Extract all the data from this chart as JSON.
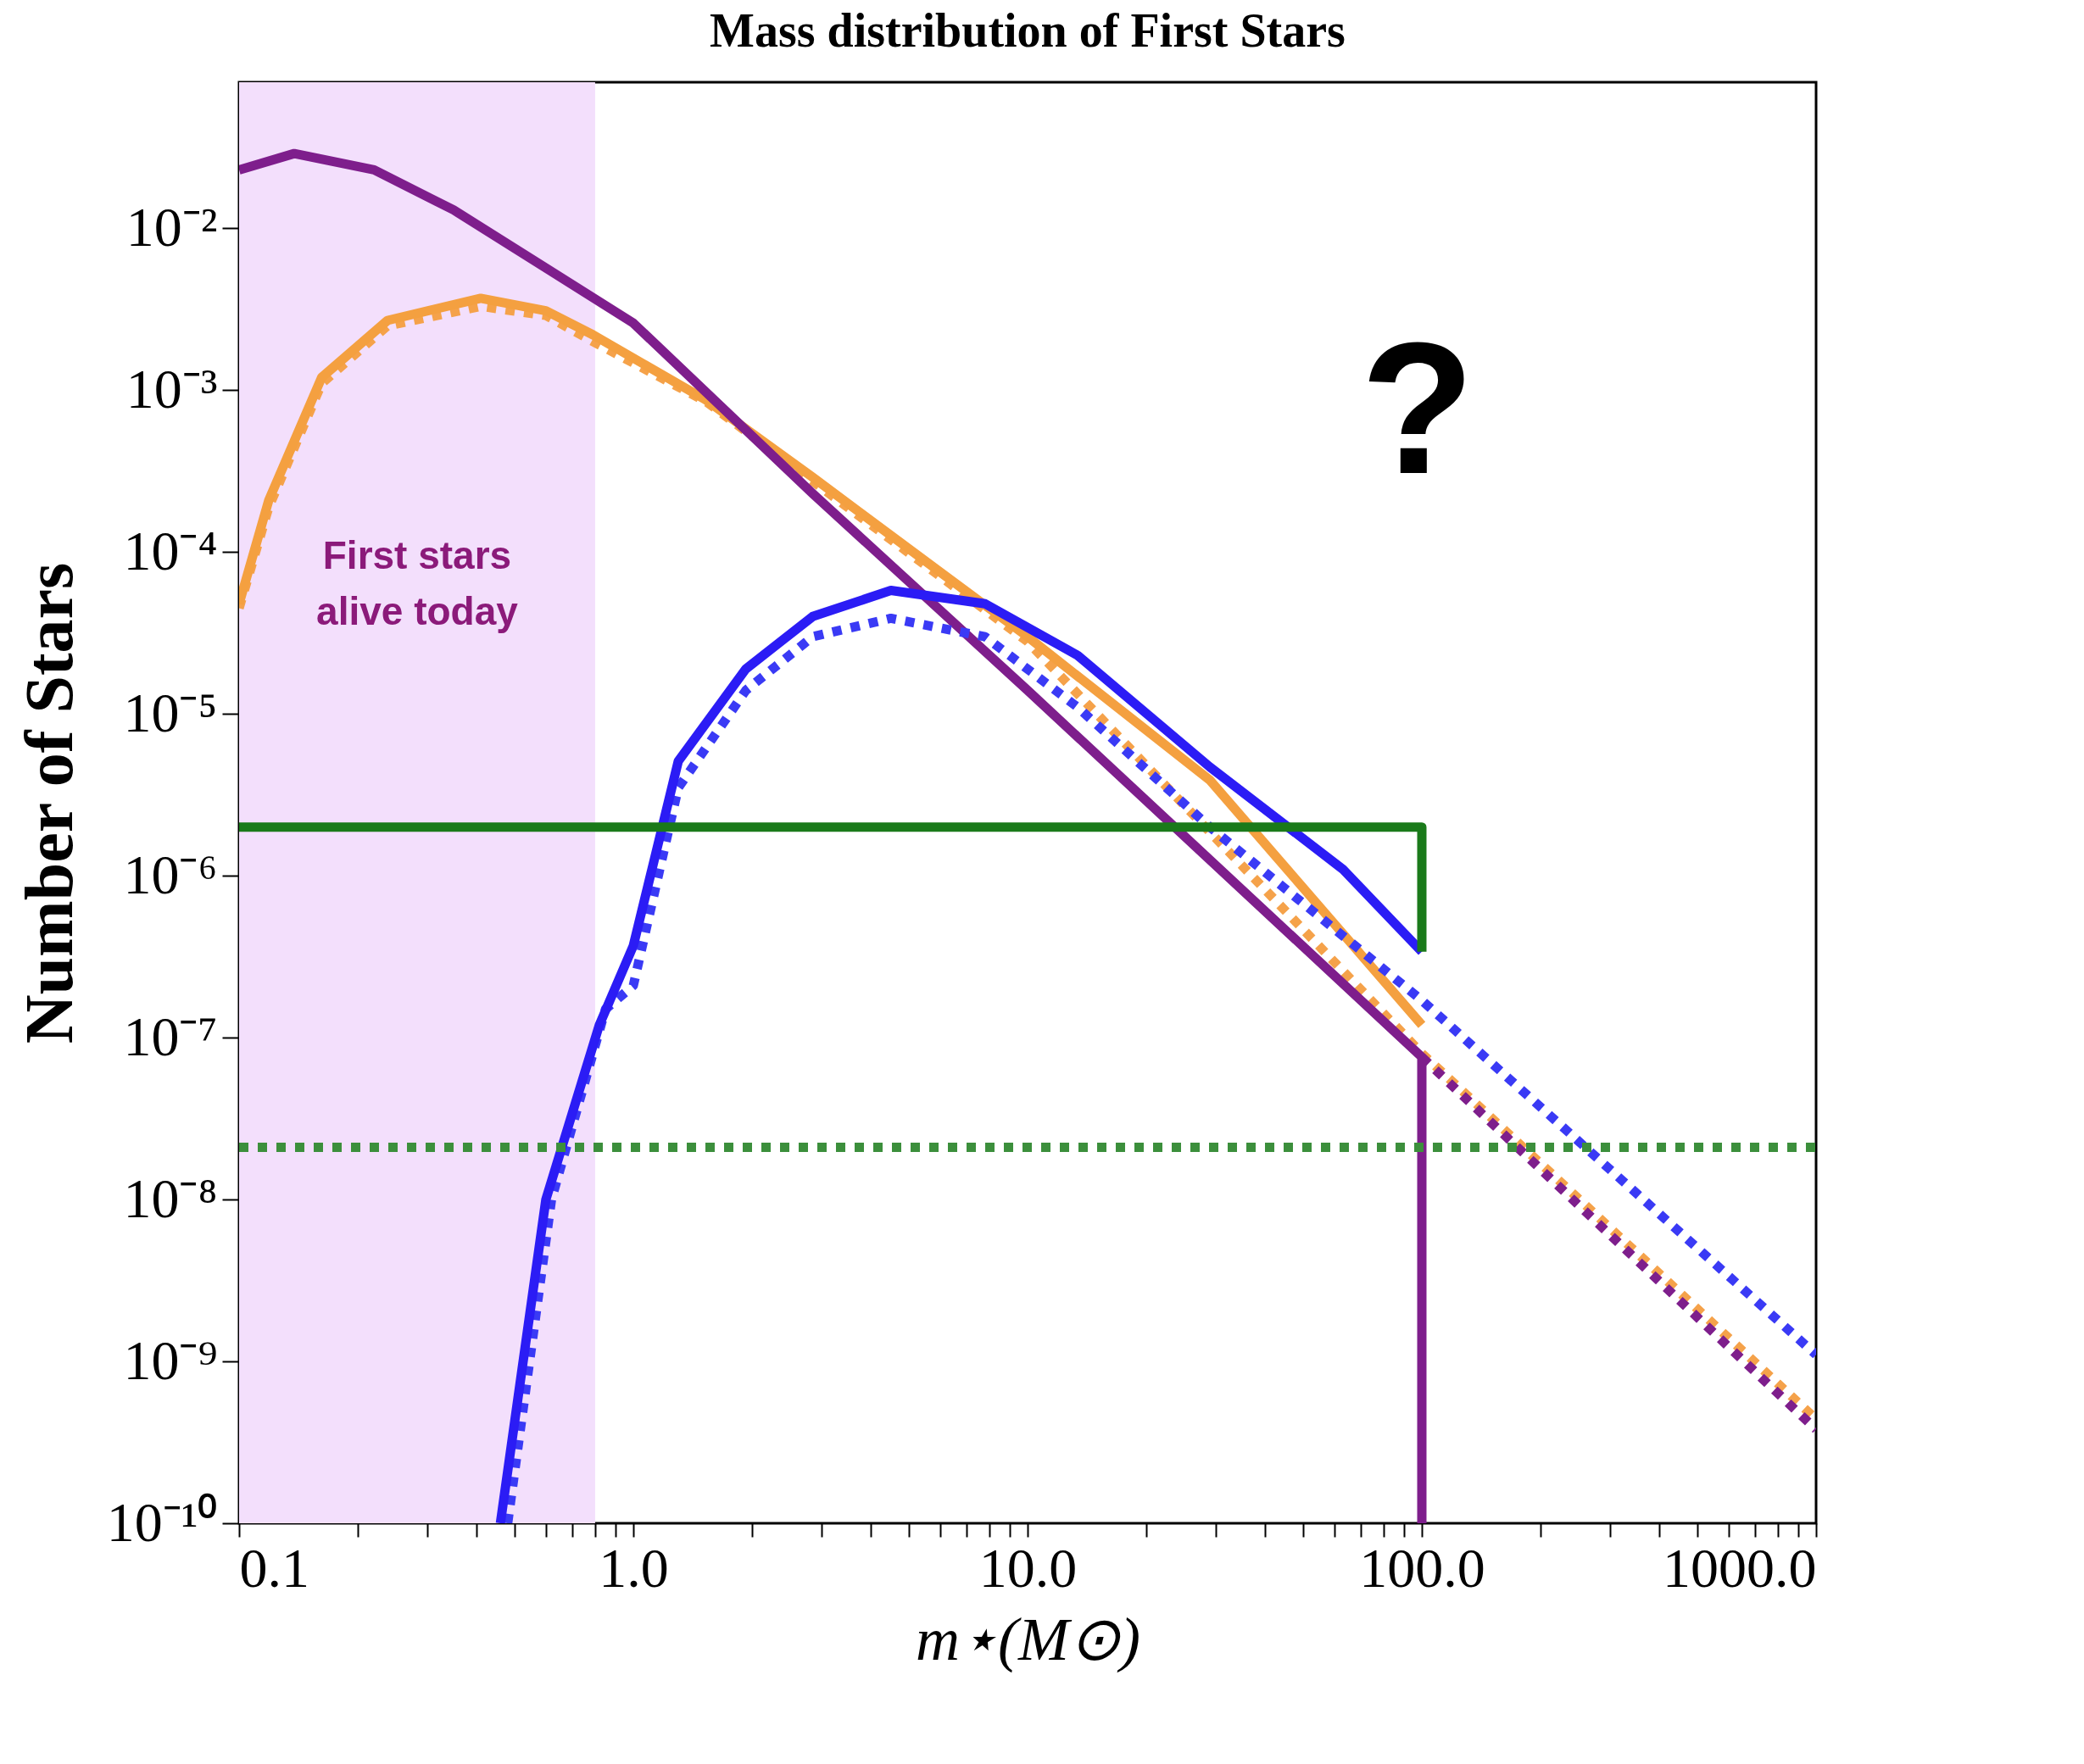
{
  "chart_data": {
    "type": "line",
    "title": "Mass distribution of First Stars",
    "xlabel": "m⋆(M⊙)",
    "ylabel": "Number of Stars",
    "log": "xy",
    "grid": false,
    "xlim": [
      0.1,
      1000
    ],
    "ylim": [
      1e-10,
      0.08
    ],
    "xticks": [
      {
        "value": 0.1,
        "label": "0.1"
      },
      {
        "value": 0.2,
        "label": null
      },
      {
        "value": 0.3,
        "label": null
      },
      {
        "value": 0.4,
        "label": null
      },
      {
        "value": 0.5,
        "label": null
      },
      {
        "value": 0.6,
        "label": null
      },
      {
        "value": 0.7,
        "label": null
      },
      {
        "value": 0.8,
        "label": null
      },
      {
        "value": 0.9,
        "label": null
      },
      {
        "value": 1,
        "label": "1.0"
      },
      {
        "value": 2,
        "label": null
      },
      {
        "value": 3,
        "label": null
      },
      {
        "value": 4,
        "label": null
      },
      {
        "value": 5,
        "label": null
      },
      {
        "value": 6,
        "label": null
      },
      {
        "value": 7,
        "label": null
      },
      {
        "value": 8,
        "label": null
      },
      {
        "value": 9,
        "label": null
      },
      {
        "value": 10,
        "label": "10.0"
      },
      {
        "value": 20,
        "label": null
      },
      {
        "value": 30,
        "label": null
      },
      {
        "value": 40,
        "label": null
      },
      {
        "value": 50,
        "label": null
      },
      {
        "value": 60,
        "label": null
      },
      {
        "value": 70,
        "label": null
      },
      {
        "value": 80,
        "label": null
      },
      {
        "value": 90,
        "label": null
      },
      {
        "value": 100,
        "label": "100.0"
      },
      {
        "value": 200,
        "label": null
      },
      {
        "value": 300,
        "label": null
      },
      {
        "value": 400,
        "label": null
      },
      {
        "value": 500,
        "label": null
      },
      {
        "value": 600,
        "label": null
      },
      {
        "value": 700,
        "label": null
      },
      {
        "value": 800,
        "label": null
      },
      {
        "value": 900,
        "label": null
      },
      {
        "value": 1000,
        "label": "1000.0"
      }
    ],
    "yticks": [
      {
        "value": 1e-10,
        "label": "10⁻¹⁰"
      },
      {
        "value": 1e-09,
        "label": "10⁻⁹"
      },
      {
        "value": 1e-08,
        "label": "10⁻⁸"
      },
      {
        "value": 1e-07,
        "label": "10⁻⁷"
      },
      {
        "value": 1e-06,
        "label": "10⁻⁶"
      },
      {
        "value": 1e-05,
        "label": "10⁻⁵"
      },
      {
        "value": 0.0001,
        "label": "10⁻⁴"
      },
      {
        "value": 0.001,
        "label": "10⁻³"
      },
      {
        "value": 0.01,
        "label": "10⁻²"
      }
    ],
    "bands": [
      {
        "axis": "x",
        "from": 0.1,
        "to": 0.8,
        "label": "First stars\nalive today",
        "color": "#f3dffc"
      }
    ],
    "annotations": [
      "?"
    ],
    "series": [
      {
        "color": "#f5a24a",
        "line_style": "dotted",
        "x": [
          0.1,
          0.119,
          0.162,
          0.238,
          0.41,
          0.6,
          0.79,
          1.53,
          10,
          100,
          1000
        ],
        "values": [
          4.5e-05,
          0.00019,
          0.0011,
          0.0025,
          0.0033,
          0.0029,
          0.002,
          0.00085,
          2.8e-05,
          8e-08,
          4.4e-10
        ]
      },
      {
        "color": "#f4a040",
        "line_style": "solid",
        "x": [
          0.1,
          0.119,
          0.162,
          0.238,
          0.41,
          0.6,
          0.79,
          1.53,
          2.85,
          6.2,
          10,
          29,
          100
        ],
        "values": [
          4.8e-05,
          0.00021,
          0.0012,
          0.0027,
          0.0037,
          0.0031,
          0.0022,
          0.00087,
          0.00029,
          7.1e-05,
          3e-05,
          3.9e-06,
          1.2e-07
        ]
      },
      {
        "color": "#7e1e8c",
        "line_style": "dotted",
        "x": [
          100,
          1000
        ],
        "values": [
          7.6e-08,
          3.8e-10
        ]
      },
      {
        "color": "#7e1e8c",
        "line_style": "solid",
        "x": [
          0.1,
          0.138,
          0.22,
          0.35,
          0.6,
          1,
          2.85,
          10,
          100,
          100
        ],
        "values": [
          0.023,
          0.029,
          0.023,
          0.013,
          0.0057,
          0.0026,
          0.00023,
          1.4e-05,
          7.6e-08,
          1e-10
        ]
      },
      {
        "color": "#3a3af5",
        "line_style": "dotted",
        "x": [
          0.48,
          0.62,
          0.85,
          1,
          1.3,
          1.93,
          2.85,
          4.5,
          7.8,
          13.4,
          29,
          100,
          1000
        ],
        "values": [
          1e-10,
          1e-08,
          1.5e-07,
          2.1e-07,
          3.5e-06,
          1.4e-05,
          3e-05,
          3.9e-05,
          3e-05,
          1.1e-05,
          2e-06,
          1.7e-07,
          1.1e-09
        ]
      },
      {
        "color": "#2b1cf5",
        "line_style": "solid",
        "x": [
          0.46,
          0.6,
          0.82,
          1,
          1.3,
          1.93,
          2.85,
          4.5,
          7.8,
          13.4,
          29,
          63,
          100
        ],
        "values": [
          1e-10,
          1e-08,
          1.2e-07,
          3.7e-07,
          5.1e-06,
          1.9e-05,
          4e-05,
          5.8e-05,
          4.8e-05,
          2.3e-05,
          4.7e-06,
          1.1e-06,
          3.4e-07
        ]
      },
      {
        "color": "#3c8f3c",
        "line_style": "dotted",
        "x": [
          0.1,
          1000
        ],
        "values": [
          2.1e-08,
          2.1e-08
        ]
      },
      {
        "color": "#1a7a1a",
        "line_style": "solid",
        "x": [
          0.1,
          100,
          100
        ],
        "values": [
          2e-06,
          2e-06,
          3.4e-07
        ]
      }
    ]
  }
}
